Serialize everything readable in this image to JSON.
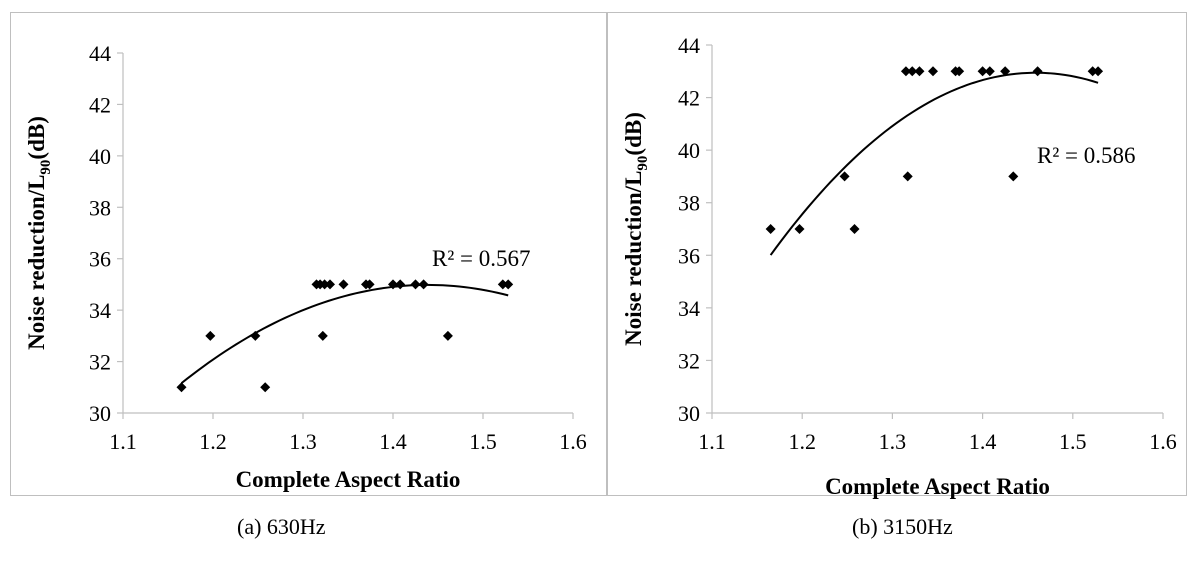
{
  "captions": {
    "a": "(a) 630Hz",
    "b": "(b) 3150Hz"
  },
  "colors": {
    "marker": "#000000",
    "axis": "#bfbfbf",
    "frame": "#bfbfbf"
  },
  "chart_data": [
    {
      "type": "scatter",
      "title": "",
      "xlabel": "Complete Aspect Ratio",
      "ylabel": "Noise reduction/L",
      "ylabel_sub": "90",
      "ylabel_suffix": "(dB)",
      "xlim": [
        1.1,
        1.6
      ],
      "ylim": [
        30,
        44
      ],
      "xticks": [
        1.1,
        1.2,
        1.3,
        1.4,
        1.5,
        1.6
      ],
      "yticks": [
        30,
        32,
        34,
        36,
        38,
        40,
        42,
        44
      ],
      "grid": false,
      "trendline": {
        "type": "polynomial",
        "degree": 2,
        "r2_label": "R² = 0.567",
        "x_start": 1.165,
        "x_end": 1.528
      },
      "points": [
        {
          "x": 1.165,
          "y": 31
        },
        {
          "x": 1.197,
          "y": 33
        },
        {
          "x": 1.247,
          "y": 33
        },
        {
          "x": 1.258,
          "y": 31
        },
        {
          "x": 1.315,
          "y": 35
        },
        {
          "x": 1.319,
          "y": 35
        },
        {
          "x": 1.322,
          "y": 33
        },
        {
          "x": 1.324,
          "y": 35
        },
        {
          "x": 1.33,
          "y": 35
        },
        {
          "x": 1.345,
          "y": 35
        },
        {
          "x": 1.37,
          "y": 35
        },
        {
          "x": 1.374,
          "y": 35
        },
        {
          "x": 1.4,
          "y": 35
        },
        {
          "x": 1.408,
          "y": 35
        },
        {
          "x": 1.425,
          "y": 35
        },
        {
          "x": 1.434,
          "y": 35
        },
        {
          "x": 1.461,
          "y": 33
        },
        {
          "x": 1.522,
          "y": 35
        },
        {
          "x": 1.528,
          "y": 35
        }
      ]
    },
    {
      "type": "scatter",
      "title": "",
      "xlabel": "Complete Aspect Ratio",
      "ylabel": "Noise reduction/L",
      "ylabel_sub": "90",
      "ylabel_suffix": "(dB)",
      "xlim": [
        1.1,
        1.6
      ],
      "ylim": [
        30,
        44
      ],
      "xticks": [
        1.1,
        1.2,
        1.3,
        1.4,
        1.5,
        1.6
      ],
      "yticks": [
        30,
        32,
        34,
        36,
        38,
        40,
        42,
        44
      ],
      "grid": false,
      "trendline": {
        "type": "polynomial",
        "degree": 2,
        "r2_label": "R² = 0.586",
        "x_start": 1.165,
        "x_end": 1.528
      },
      "points": [
        {
          "x": 1.165,
          "y": 37
        },
        {
          "x": 1.197,
          "y": 37
        },
        {
          "x": 1.247,
          "y": 39
        },
        {
          "x": 1.258,
          "y": 37
        },
        {
          "x": 1.315,
          "y": 43
        },
        {
          "x": 1.317,
          "y": 39
        },
        {
          "x": 1.322,
          "y": 43
        },
        {
          "x": 1.33,
          "y": 43
        },
        {
          "x": 1.345,
          "y": 43
        },
        {
          "x": 1.37,
          "y": 43
        },
        {
          "x": 1.374,
          "y": 43
        },
        {
          "x": 1.4,
          "y": 43
        },
        {
          "x": 1.408,
          "y": 43
        },
        {
          "x": 1.425,
          "y": 43
        },
        {
          "x": 1.434,
          "y": 39
        },
        {
          "x": 1.461,
          "y": 43
        },
        {
          "x": 1.522,
          "y": 43
        },
        {
          "x": 1.528,
          "y": 43
        }
      ]
    }
  ]
}
